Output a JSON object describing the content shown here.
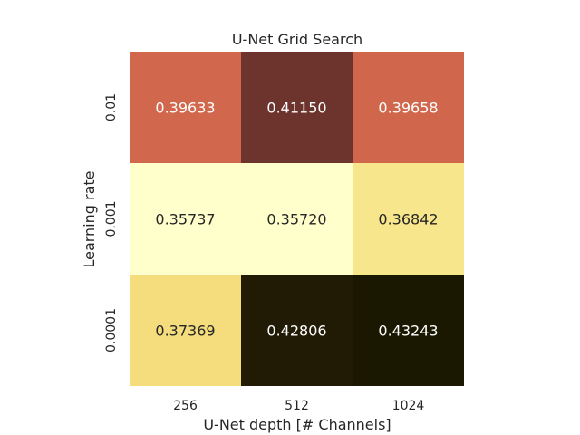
{
  "chart_data": {
    "type": "heatmap",
    "title": "U-Net Grid Search",
    "xlabel": "U-Net depth [# Channels]",
    "ylabel": "Learning rate",
    "x_categories": [
      "256",
      "512",
      "1024"
    ],
    "y_categories": [
      "0.01",
      "0.001",
      "0.0001"
    ],
    "values": [
      [
        0.39633,
        0.4115,
        0.39658
      ],
      [
        0.35737,
        0.3572,
        0.36842
      ],
      [
        0.37369,
        0.42806,
        0.43243
      ]
    ],
    "value_labels": [
      [
        "0.39633",
        "0.41150",
        "0.39658"
      ],
      [
        "0.35737",
        "0.35720",
        "0.36842"
      ],
      [
        "0.37369",
        "0.42806",
        "0.43243"
      ]
    ],
    "colormap": [
      "#ffffcc",
      "#f6e385",
      "#f2cc6a",
      "#db6d4e",
      "#8b3e3a",
      "#2e2010",
      "#1a1800"
    ],
    "grid": false,
    "colorbar": false
  }
}
